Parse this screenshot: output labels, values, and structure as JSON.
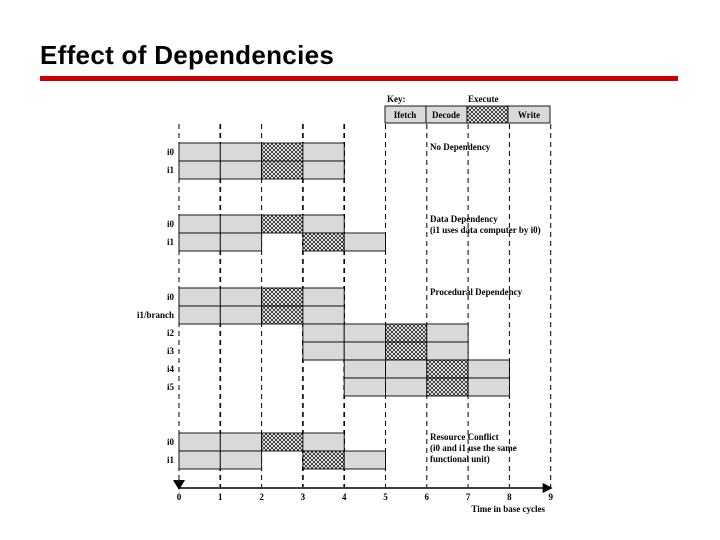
{
  "title": "Effect of Dependencies",
  "colors": {
    "accent_rule": "#cc0000",
    "stage_fill": "#d9d9d9"
  },
  "key": {
    "heading": "Key:",
    "execute": "Execute",
    "ifetch": "Ifetch",
    "decode": "Decode",
    "write": "Write"
  },
  "time_axis": {
    "label": "Time in base cycles",
    "ticks": [
      "0",
      "1",
      "2",
      "3",
      "4",
      "5",
      "6",
      "7",
      "8",
      "9"
    ]
  },
  "groups": [
    {
      "caption": [
        "No Dependency"
      ],
      "rows": [
        {
          "label": "i0",
          "fetch_at": 0,
          "exec_start": 2,
          "exec_cycles": 1
        },
        {
          "label": "i1",
          "fetch_at": 0,
          "exec_start": 2,
          "exec_cycles": 1
        }
      ]
    },
    {
      "caption": [
        "Data Dependency",
        "(i1 uses data computer by i0)"
      ],
      "rows": [
        {
          "label": "i0",
          "fetch_at": 0,
          "exec_start": 2,
          "exec_cycles": 1
        },
        {
          "label": "i1",
          "fetch_at": 0,
          "exec_start": 3,
          "exec_cycles": 1
        }
      ]
    },
    {
      "caption": [
        "Procedural Dependency"
      ],
      "rows": [
        {
          "label": "i0",
          "fetch_at": 0,
          "exec_start": 2,
          "exec_cycles": 1
        },
        {
          "label": "i1/branch",
          "fetch_at": 0,
          "exec_start": 2,
          "exec_cycles": 1
        },
        {
          "label": "i2",
          "fetch_at": 3,
          "exec_start": 5,
          "exec_cycles": 1
        },
        {
          "label": "i3",
          "fetch_at": 3,
          "exec_start": 5,
          "exec_cycles": 1
        },
        {
          "label": "i4",
          "fetch_at": 4,
          "exec_start": 6,
          "exec_cycles": 1
        },
        {
          "label": "i5",
          "fetch_at": 4,
          "exec_start": 6,
          "exec_cycles": 1
        }
      ]
    },
    {
      "caption": [
        "Resource Conflict",
        "(i0 and i1 use the same",
        "functional unit)"
      ],
      "rows": [
        {
          "label": "i0",
          "fetch_at": 0,
          "exec_start": 2,
          "exec_cycles": 1
        },
        {
          "label": "i1",
          "fetch_at": 0,
          "exec_start": 3,
          "exec_cycles": 1
        }
      ]
    }
  ]
}
